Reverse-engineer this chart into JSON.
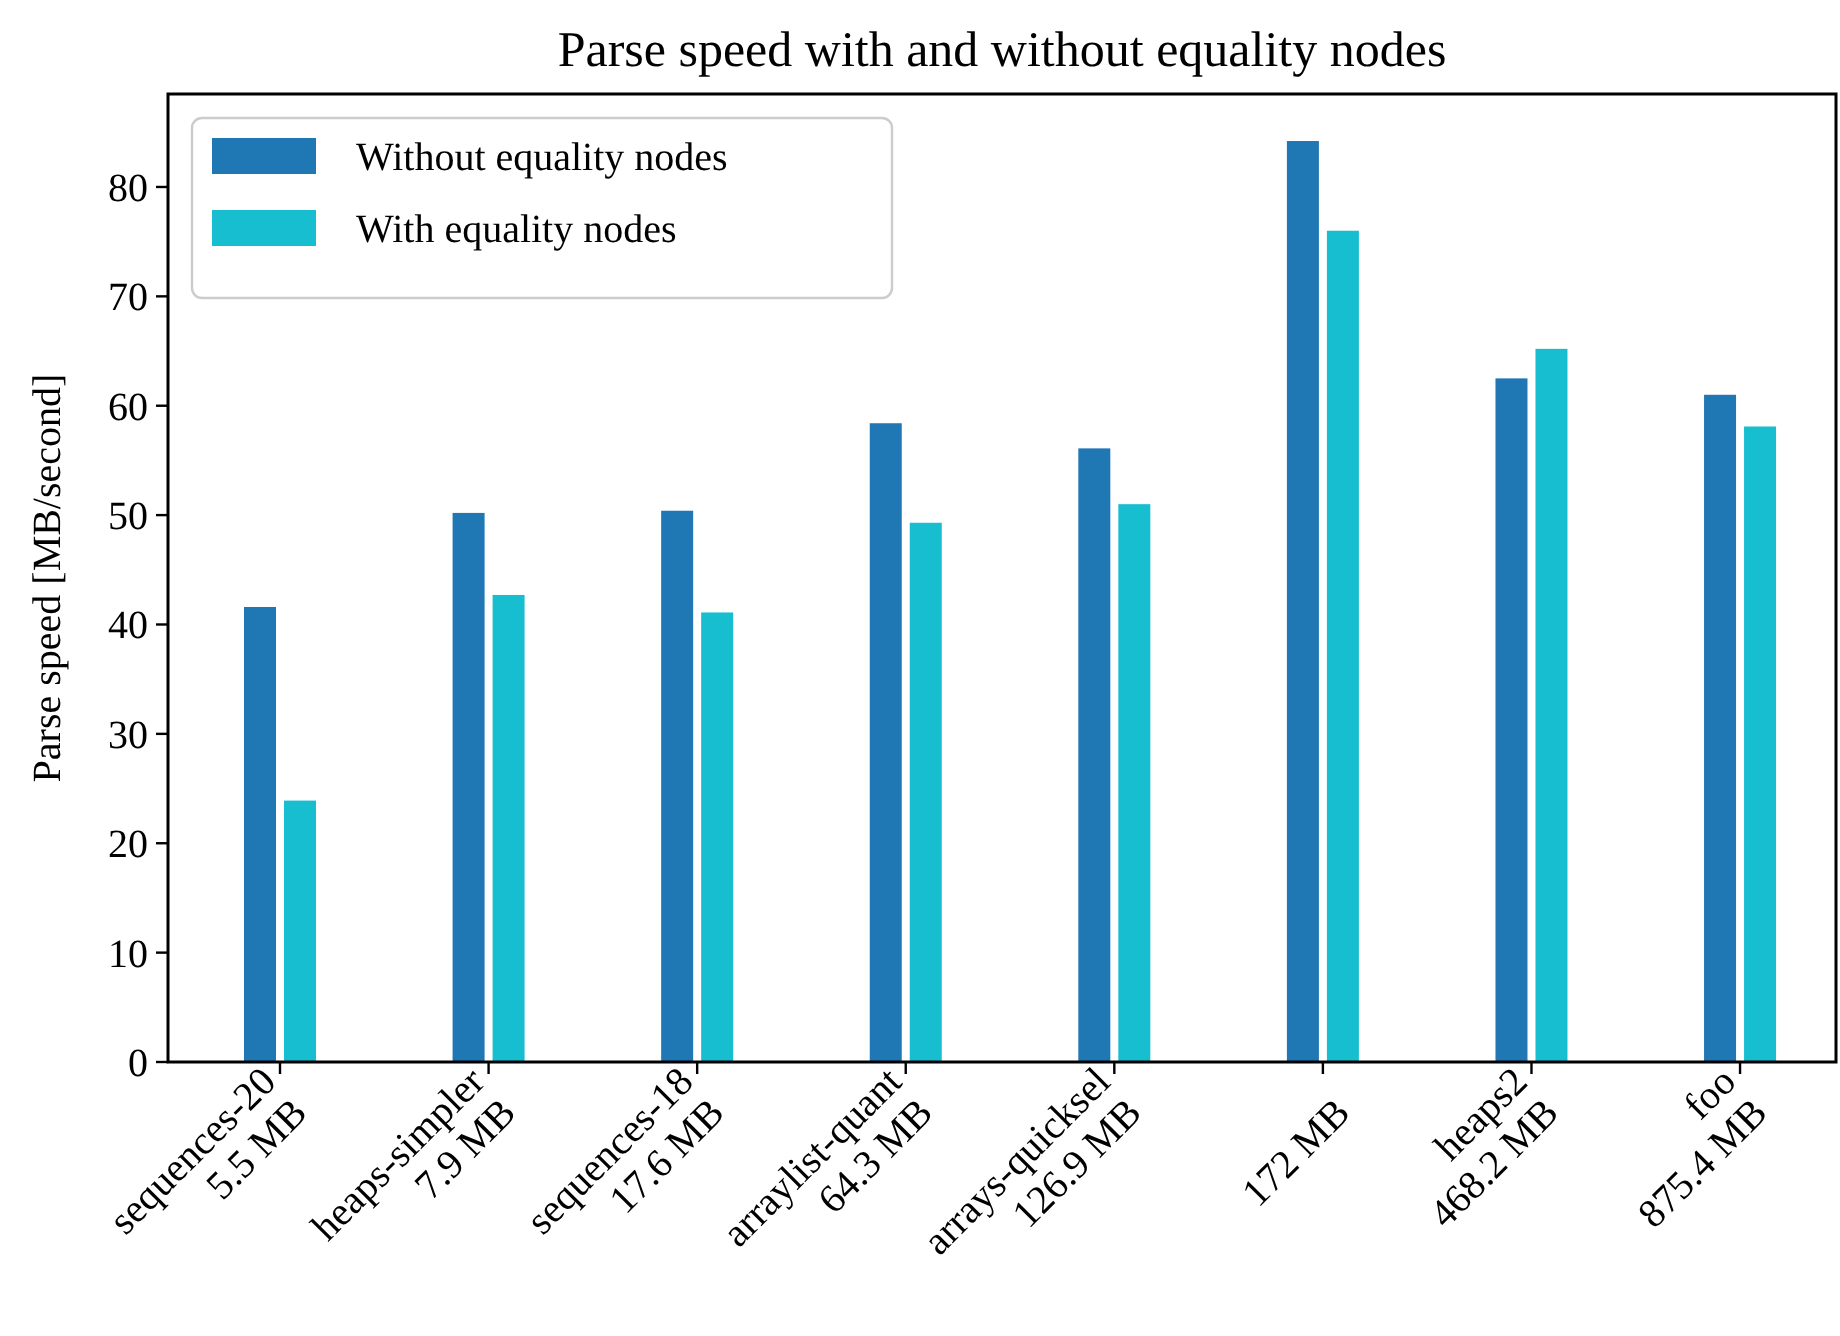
{
  "chart_data": {
    "type": "bar",
    "title": "Parse speed with and without equality nodes",
    "ylabel": "Parse speed [MB/second]",
    "categories": [
      "sequences-20\n5.5 MB",
      "heaps-simpler\n7.9 MB",
      "sequences-18\n17.6 MB",
      "arraylist-quant\n64.3 MB",
      "arrays-quicksel\n126.9 MB",
      "172 MB",
      "heaps2\n468.2 MB",
      "foo\n875.4 MB"
    ],
    "series": [
      {
        "name": "Without equality nodes",
        "color": "#1f77b4",
        "values": [
          41.6,
          50.2,
          50.4,
          58.4,
          56.1,
          84.2,
          62.5,
          61.0
        ]
      },
      {
        "name": "With equality nodes",
        "color": "#17becf",
        "values": [
          23.9,
          42.7,
          41.1,
          49.3,
          51.0,
          76.0,
          65.2,
          58.1
        ]
      }
    ],
    "ylim": [
      0,
      88.5
    ],
    "yticks": [
      0,
      10,
      20,
      30,
      40,
      50,
      60,
      70,
      80
    ],
    "grid": false,
    "legend": "top left"
  }
}
